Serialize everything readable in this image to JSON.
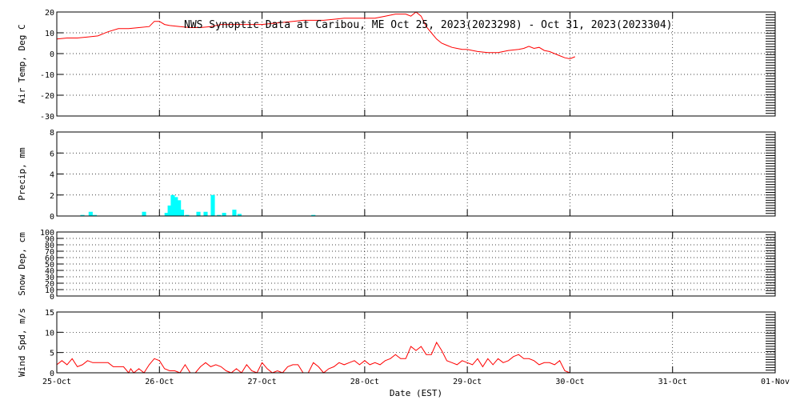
{
  "chart_data": {
    "type": "multi-panel time series",
    "title": "NWS Synoptic Data at Caribou, ME   Oct 25, 2023(2023298) - Oct 31, 2023(2023304)",
    "xlabel": "Date (EST)",
    "x_tick_labels": [
      "25-Oct",
      "26-Oct",
      "27-Oct",
      "28-Oct",
      "29-Oct",
      "30-Oct",
      "31-Oct",
      "01-Nov"
    ],
    "x_range_days": [
      0,
      7
    ],
    "colors": {
      "temp": "#ff0000",
      "precip": "#00ffff",
      "wind": "#ff0000"
    },
    "panels": [
      {
        "id": "temp",
        "type": "line",
        "ylabel": "Air Temp, Deg C",
        "ylim": [
          -30,
          20
        ],
        "yticks": [
          -30,
          -20,
          -10,
          0,
          10,
          20
        ],
        "grid": true,
        "x_days": [
          0,
          0.1,
          0.2,
          0.3,
          0.4,
          0.5,
          0.6,
          0.7,
          0.8,
          0.9,
          0.95,
          1.0,
          1.05,
          1.1,
          1.2,
          1.3,
          1.4,
          1.5,
          1.6,
          1.7,
          1.8,
          1.9,
          2.0,
          2.1,
          2.2,
          2.3,
          2.4,
          2.5,
          2.6,
          2.7,
          2.8,
          2.9,
          3.0,
          3.1,
          3.2,
          3.3,
          3.4,
          3.45,
          3.5,
          3.55,
          3.6,
          3.65,
          3.7,
          3.75,
          3.8,
          3.85,
          3.9,
          3.95,
          4.0,
          4.05,
          4.1,
          4.2,
          4.3,
          4.4,
          4.5,
          4.55,
          4.6,
          4.65,
          4.7,
          4.75,
          4.8,
          4.85,
          4.9,
          4.95,
          5.0,
          5.05
        ],
        "values": [
          7,
          7.5,
          7.5,
          8,
          8.5,
          10.5,
          12,
          12,
          12.5,
          13,
          15.5,
          15.5,
          14,
          13.5,
          13,
          12.5,
          12.5,
          13,
          14,
          14,
          14,
          14,
          14,
          14.5,
          15,
          15.5,
          16,
          16,
          16,
          16.5,
          17,
          17,
          17,
          17,
          18,
          19,
          19,
          18,
          22,
          18,
          13,
          10,
          7,
          5,
          4,
          3,
          2.5,
          2,
          2,
          1.5,
          1,
          0.5,
          0.5,
          1.5,
          2,
          2.5,
          3.5,
          2.5,
          3,
          1.5,
          1,
          0,
          -1,
          -2,
          -2.5,
          -1.5
        ]
      },
      {
        "id": "precip",
        "type": "bar",
        "ylabel": "Precip, mm",
        "ylim": [
          0,
          8
        ],
        "yticks": [
          0,
          2,
          4,
          6,
          8
        ],
        "grid": true,
        "bar_width_days": 0.04,
        "x_days": [
          0.25,
          0.33,
          0.37,
          0.85,
          1.07,
          1.1,
          1.13,
          1.16,
          1.19,
          1.22,
          1.27,
          1.38,
          1.45,
          1.52,
          1.58,
          1.63,
          1.73,
          1.78,
          2.5
        ],
        "values": [
          0.1,
          0.4,
          0.1,
          0.4,
          0.3,
          1.0,
          2.0,
          1.8,
          1.5,
          0.6,
          0.1,
          0.4,
          0.4,
          2.0,
          0.1,
          0.3,
          0.6,
          0.2,
          0.1
        ]
      },
      {
        "id": "snow",
        "type": "line",
        "ylabel": "Snow Dep, cm",
        "ylim": [
          0,
          100
        ],
        "yticks": [
          0,
          10,
          20,
          30,
          40,
          50,
          60,
          70,
          80,
          90,
          100
        ],
        "grid": true,
        "x_days": [],
        "values": []
      },
      {
        "id": "wind",
        "type": "line",
        "ylabel": "Wind Spd, m/s",
        "ylim": [
          0,
          15
        ],
        "yticks": [
          0,
          5,
          10,
          15
        ],
        "grid": true,
        "x_days": [
          0,
          0.05,
          0.1,
          0.15,
          0.2,
          0.25,
          0.3,
          0.35,
          0.4,
          0.45,
          0.5,
          0.55,
          0.6,
          0.65,
          0.7,
          0.72,
          0.75,
          0.8,
          0.85,
          0.9,
          0.95,
          1.0,
          1.05,
          1.1,
          1.15,
          1.2,
          1.25,
          1.3,
          1.35,
          1.4,
          1.45,
          1.5,
          1.55,
          1.6,
          1.65,
          1.7,
          1.75,
          1.8,
          1.85,
          1.9,
          1.95,
          2.0,
          2.05,
          2.1,
          2.15,
          2.2,
          2.25,
          2.3,
          2.35,
          2.4,
          2.45,
          2.5,
          2.55,
          2.6,
          2.65,
          2.7,
          2.75,
          2.8,
          2.85,
          2.9,
          2.95,
          3.0,
          3.05,
          3.1,
          3.15,
          3.2,
          3.25,
          3.3,
          3.35,
          3.4,
          3.45,
          3.5,
          3.55,
          3.6,
          3.65,
          3.7,
          3.75,
          3.8,
          3.85,
          3.9,
          3.95,
          4.0,
          4.05,
          4.1,
          4.15,
          4.2,
          4.25,
          4.3,
          4.35,
          4.4,
          4.45,
          4.5,
          4.55,
          4.6,
          4.65,
          4.7,
          4.75,
          4.8,
          4.85,
          4.9,
          4.95,
          5.0
        ],
        "values": [
          2,
          3,
          2,
          3.5,
          1.5,
          2,
          3,
          2.5,
          2.5,
          2.5,
          2.5,
          1.5,
          1.5,
          1.5,
          0,
          1,
          0,
          1,
          0,
          2,
          3.5,
          3,
          1,
          0.5,
          0.5,
          0,
          2,
          0,
          0,
          1.5,
          2.5,
          1.5,
          2,
          1.5,
          0.5,
          0,
          1,
          0,
          2,
          0.5,
          0,
          2.5,
          1,
          0,
          0.5,
          0,
          1.5,
          2,
          2,
          0,
          0,
          2.5,
          1.5,
          0,
          1,
          1.5,
          2.5,
          2,
          2.5,
          3,
          2,
          3,
          2,
          2.5,
          2,
          3,
          3.5,
          4.5,
          3.5,
          3.5,
          6.5,
          5.5,
          6.5,
          4.5,
          4.5,
          7.5,
          5.5,
          3,
          2.5,
          2,
          3,
          2.5,
          2,
          3.5,
          1.5,
          3.5,
          2,
          3.5,
          2.5,
          3,
          4,
          4.5,
          3.5,
          3.5,
          3,
          2,
          2.5,
          2.5,
          2,
          3,
          0.5,
          0
        ]
      }
    ]
  }
}
